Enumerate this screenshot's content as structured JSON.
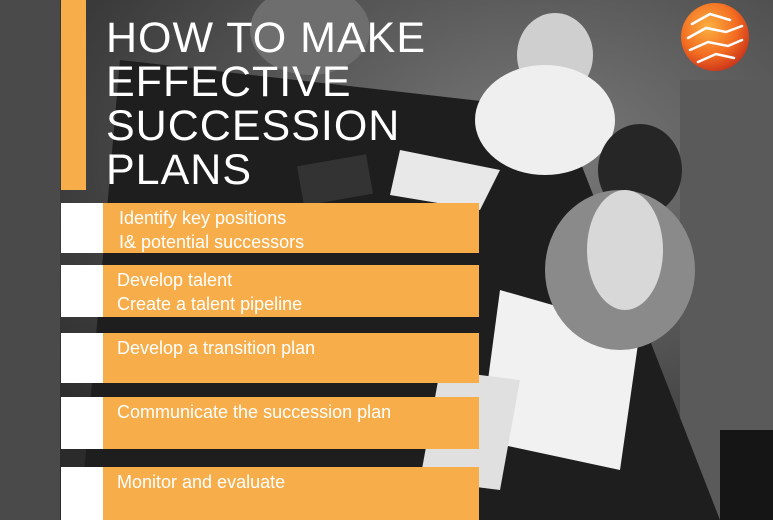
{
  "title": {
    "lines": [
      "HOW TO MAKE",
      "EFFECTIVE",
      "SUCCESSION",
      "PLANS"
    ]
  },
  "steps": [
    {
      "line1": "Identify key positions",
      "line2": "I& potential successors"
    },
    {
      "line1": "Develop talent",
      "line2": "Create a talent pipeline"
    },
    {
      "line1": "Develop a transition plan",
      "line2": ""
    },
    {
      "line1": "Communicate the succession plan",
      "line2": ""
    },
    {
      "line1": "Monitor and evaluate",
      "line2": ""
    }
  ],
  "colors": {
    "accent": "#f6ad4a",
    "text_on_accent": "#ffffff",
    "logo_orange": "#f36c21"
  },
  "icons": {
    "logo": "sphere-logo-icon"
  }
}
